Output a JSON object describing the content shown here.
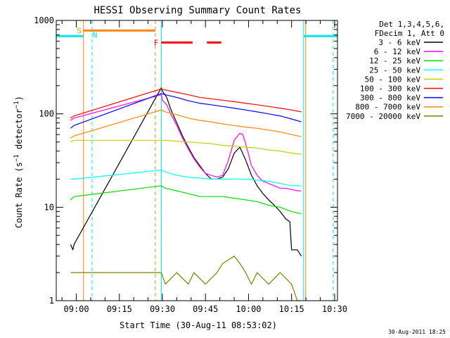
{
  "chart_data": {
    "type": "line",
    "title": "HESSI Observing Summary Count Rates",
    "xlabel": "Start Time (30-Aug-11 08:53:02)",
    "ylabel": "Count Rate (s⁻¹ detector⁻¹)",
    "ylabel_parts": {
      "pre": "Count Rate (s",
      "sup1": "−1",
      "mid": " detector",
      "sup2": "−1",
      "post": ")"
    },
    "yscale": "log",
    "ylim": [
      1,
      1000
    ],
    "xlim_minutes": [
      0,
      98
    ],
    "y_ticks": [
      {
        "value": 1,
        "label": "1"
      },
      {
        "value": 10,
        "label": "10"
      },
      {
        "value": 100,
        "label": "100"
      },
      {
        "value": 1000,
        "label": "1000"
      }
    ],
    "x_ticks": [
      {
        "minute": 7,
        "label": "09:00"
      },
      {
        "minute": 22,
        "label": "09:15"
      },
      {
        "minute": 37,
        "label": "09:30"
      },
      {
        "minute": 52,
        "label": "09:45"
      },
      {
        "minute": 67,
        "label": "10:00"
      },
      {
        "minute": 82,
        "label": "10:15"
      },
      {
        "minute": 97,
        "label": "10:30"
      }
    ],
    "legend_header": [
      "Det 1,3,4,5,6,",
      "FDecim 1, Att 0"
    ],
    "legend_position": "right",
    "footer_date": "30-Aug-2011 18:25",
    "series": [
      {
        "name": "3 - 6 keV",
        "color": "#000000",
        "x": [
          5,
          5.8,
          6.2,
          36.6,
          37,
          38.5,
          40,
          42,
          44,
          46,
          48,
          50,
          52,
          54,
          56,
          58,
          60,
          62,
          64,
          66,
          68,
          70,
          72,
          74,
          76,
          78,
          80,
          81.4,
          82,
          84,
          85.4
        ],
        "y": [
          4,
          3.5,
          4,
          190,
          175,
          150,
          110,
          80,
          58,
          44,
          34,
          28,
          23,
          20,
          20,
          21,
          26,
          38,
          44,
          32,
          22,
          17,
          14,
          12,
          10.5,
          9,
          7.5,
          7,
          3.5,
          3.5,
          3
        ]
      },
      {
        "name": "6 - 12 keV",
        "color": "#ff00ff",
        "x": [
          5,
          6.2,
          36.6,
          37,
          38.5,
          40,
          42,
          44,
          46,
          48,
          50,
          52,
          54,
          56,
          58,
          60,
          62,
          64,
          65,
          66,
          68,
          70,
          72,
          74,
          76,
          78,
          80,
          82,
          84,
          85.4
        ],
        "y": [
          85,
          90,
          160,
          140,
          125,
          98,
          75,
          55,
          42,
          33,
          27,
          23,
          22,
          21,
          22,
          32,
          52,
          62,
          60,
          48,
          28,
          22,
          19,
          18,
          17,
          16,
          16,
          15.5,
          15,
          15
        ]
      },
      {
        "name": "12 - 25 keV",
        "color": "#00dd00",
        "x": [
          5,
          6.2,
          36.6,
          38,
          42,
          46,
          50,
          54,
          58,
          62,
          66,
          70,
          74,
          78,
          82,
          85.4
        ],
        "y": [
          12,
          13,
          17,
          16,
          15,
          14,
          13,
          13,
          13,
          12.5,
          12,
          11.5,
          10.5,
          10,
          9,
          8.5
        ]
      },
      {
        "name": "25 - 50 keV",
        "color": "#00ffff",
        "x": [
          5,
          6.2,
          36.6,
          38,
          42,
          46,
          50,
          54,
          58,
          62,
          66,
          70,
          74,
          78,
          82,
          85.4
        ],
        "y": [
          20,
          20,
          25,
          24,
          22,
          21,
          20.5,
          20,
          20,
          20,
          20,
          19.5,
          19,
          18,
          17,
          17
        ]
      },
      {
        "name": "50 - 100 keV",
        "color": "#cccc00",
        "x": [
          5,
          6.2,
          36.6,
          38,
          42,
          46,
          50,
          54,
          58,
          62,
          66,
          70,
          74,
          78,
          82,
          85.4
        ],
        "y": [
          50,
          52,
          52,
          52,
          51,
          50,
          49,
          48,
          46,
          45,
          44,
          43,
          41,
          40,
          38,
          37
        ]
      },
      {
        "name": "100 - 300 keV",
        "color": "#ff0000",
        "x": [
          5,
          6.2,
          36.6,
          38,
          42,
          46,
          50,
          54,
          58,
          62,
          66,
          70,
          74,
          78,
          82,
          85.4
        ],
        "y": [
          90,
          95,
          185,
          180,
          170,
          160,
          150,
          145,
          140,
          135,
          130,
          125,
          120,
          115,
          110,
          105
        ]
      },
      {
        "name": "300 - 800 keV",
        "color": "#0000ff",
        "x": [
          5,
          6.2,
          36.6,
          38,
          42,
          46,
          50,
          54,
          58,
          62,
          66,
          70,
          74,
          78,
          82,
          85.4
        ],
        "y": [
          70,
          75,
          165,
          160,
          150,
          138,
          130,
          125,
          120,
          115,
          110,
          105,
          100,
          95,
          88,
          82
        ]
      },
      {
        "name": "800 - 7000 keV",
        "color": "#ff8800",
        "x": [
          5,
          6.2,
          36.6,
          38,
          42,
          46,
          50,
          54,
          58,
          62,
          66,
          70,
          74,
          78,
          82,
          85.4
        ],
        "y": [
          55,
          58,
          110,
          105,
          98,
          90,
          85,
          82,
          78,
          75,
          72,
          70,
          67,
          64,
          60,
          57
        ]
      },
      {
        "name": "7000 - 20000 keV",
        "color": "#808000",
        "x": [
          5,
          6.2,
          36.6,
          38,
          42,
          46,
          48,
          52,
          56,
          58,
          62,
          64,
          66,
          68,
          70,
          74,
          78,
          82,
          84,
          85.4
        ],
        "y": [
          2,
          2,
          2,
          1.5,
          2,
          1.5,
          2,
          1.5,
          2,
          2.5,
          3,
          2.5,
          2,
          1.5,
          2,
          1.5,
          2,
          1.5,
          1,
          1
        ]
      }
    ],
    "attenuator_bar": {
      "y": 680,
      "segments": [
        [
          0,
          9.5
        ],
        [
          86.2,
          98
        ]
      ],
      "color": "#00e5ee"
    },
    "saa_bar": {
      "y": 780,
      "start": 9.5,
      "end": 34.5,
      "color": "#ff8800"
    },
    "flare_bar": {
      "y": 580,
      "segments": [
        [
          36.6,
          47.5
        ],
        [
          52.5,
          57.5
        ]
      ],
      "color": "#ff0000"
    },
    "marker_labels": [
      {
        "label": "S",
        "minute": 8,
        "y": 780,
        "color": "#ff8800"
      },
      {
        "label": "N",
        "minute": 13.5,
        "y": 700,
        "color": "#00e5ee"
      },
      {
        "label": "F",
        "minute": 34.8,
        "y": 580,
        "color": "#ff0000"
      }
    ],
    "vertical_lines": [
      {
        "minute": 9.5,
        "color": "#ff8800",
        "style": "solid"
      },
      {
        "minute": 12.5,
        "color": "#00e5ee",
        "style": "dashed"
      },
      {
        "minute": 34.5,
        "color": "#ff8800",
        "style": "dashed"
      },
      {
        "minute": 36.6,
        "color": "#00e5ee",
        "style": "solid"
      },
      {
        "minute": 86.2,
        "color": "#00e5ee",
        "style": "solid"
      },
      {
        "minute": 86.9,
        "color": "#ff8800",
        "style": "solid"
      },
      {
        "minute": 96.5,
        "color": "#00e5ee",
        "style": "dashed"
      }
    ]
  }
}
